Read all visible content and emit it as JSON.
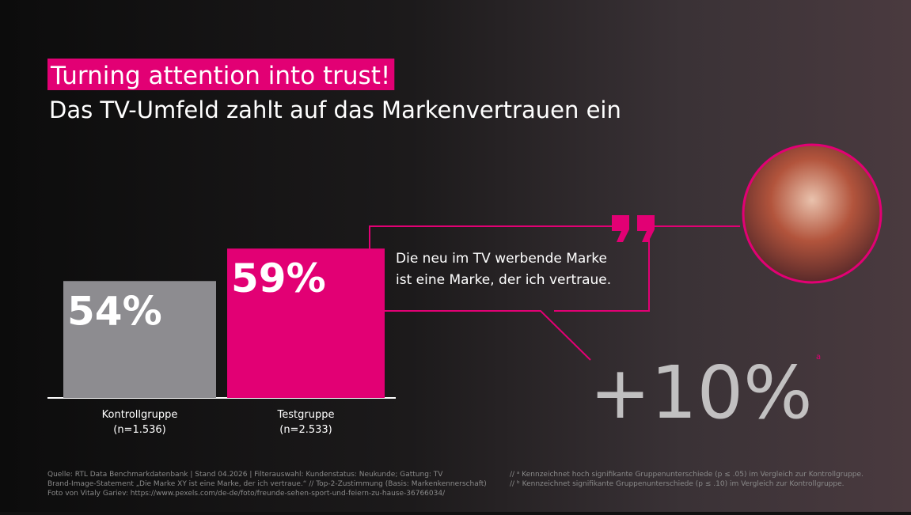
{
  "chart_data": {
    "type": "bar",
    "title": "Turning attention into trust!",
    "subtitle": "Das TV-Umfeld zahlt auf das Markenvertrauen ein",
    "categories": [
      "Kontrollgruppe",
      "Testgruppe"
    ],
    "sample_sizes": [
      "(n=1.536)",
      "(n=2.533)"
    ],
    "values": [
      54,
      59
    ],
    "value_labels": [
      "54%",
      "59%"
    ],
    "colors": [
      "#8d8c90",
      "#e20074"
    ],
    "ylim": [
      36,
      60
    ],
    "quote": [
      "Die neu im TV werbende Marke",
      "ist eine Marke, der ich vertraue."
    ],
    "uplift": {
      "value": 10,
      "label": "+10%",
      "note": "a"
    },
    "source": [
      "Quelle: RTL Data Benchmarkdatenbank | Stand 04.2026 | Filterauswahl: Kundenstatus: Neukunde; Gattung: TV",
      "Brand-Image-Statement „Die Marke XY ist eine Marke, der ich vertraue.“ // Top-2-Zustimmung (Basis: Markenkennerschaft)",
      "Foto von Vitaly Gariev: https://www.pexels.com/de-de/foto/freunde-sehen-sport-und-feiern-zu-hause-36766034/"
    ],
    "notes": [
      "// ᵃ Kennzeichnet hoch signifikante Gruppenunterschiede (p ≤ .05) im Vergleich zur Kontrollgruppe.",
      "// ᵇ Kennzeichnet signifikante Gruppenunterschiede (p ≤ .10) im Vergleich zur Kontrollgruppe."
    ]
  }
}
